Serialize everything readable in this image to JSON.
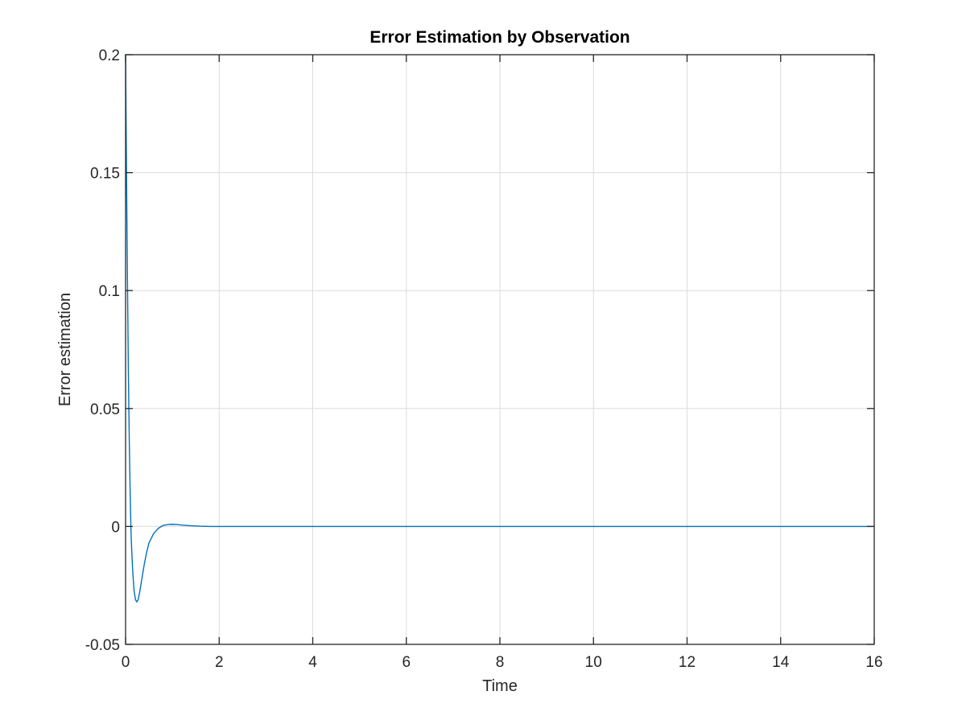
{
  "chart_data": {
    "type": "line",
    "title": "Error Estimation by Observation",
    "xlabel": "Time",
    "ylabel": "Error estimation",
    "xlim": [
      0,
      16
    ],
    "ylim": [
      -0.05,
      0.2
    ],
    "xticks": [
      0,
      2,
      4,
      6,
      8,
      10,
      12,
      14,
      16
    ],
    "yticks": [
      -0.05,
      0,
      0.05,
      0.1,
      0.15,
      0.2
    ],
    "xtick_labels": [
      "0",
      "2",
      "4",
      "6",
      "8",
      "10",
      "12",
      "14",
      "16"
    ],
    "ytick_labels": [
      "-0.05",
      "0",
      "0.05",
      "0.1",
      "0.15",
      "0.2"
    ],
    "grid": true,
    "legend": "none",
    "series": [
      {
        "color": "#0072BD",
        "x": [
          0,
          0.02,
          0.04,
          0.06,
          0.08,
          0.1,
          0.12,
          0.15,
          0.18,
          0.21,
          0.24,
          0.27,
          0.3,
          0.35,
          0.4,
          0.45,
          0.5,
          0.6,
          0.7,
          0.8,
          0.9,
          1.0,
          1.1,
          1.2,
          1.4,
          1.6,
          1.8,
          2.0,
          2.5,
          3.0,
          4.0,
          6.0,
          8.0,
          10.0,
          12.0,
          14.0,
          16.0
        ],
        "values": [
          0.2,
          0.15,
          0.105,
          0.065,
          0.035,
          0.012,
          -0.005,
          -0.018,
          -0.027,
          -0.031,
          -0.032,
          -0.031,
          -0.028,
          -0.022,
          -0.016,
          -0.011,
          -0.007,
          -0.003,
          -0.0008,
          0.0004,
          0.0008,
          0.0009,
          0.0008,
          0.0006,
          0.0003,
          0.0001,
          0.0,
          0.0,
          0.0,
          0.0,
          0.0,
          0.0,
          0.0,
          0.0,
          0.0,
          0.0,
          0.0
        ]
      }
    ]
  }
}
